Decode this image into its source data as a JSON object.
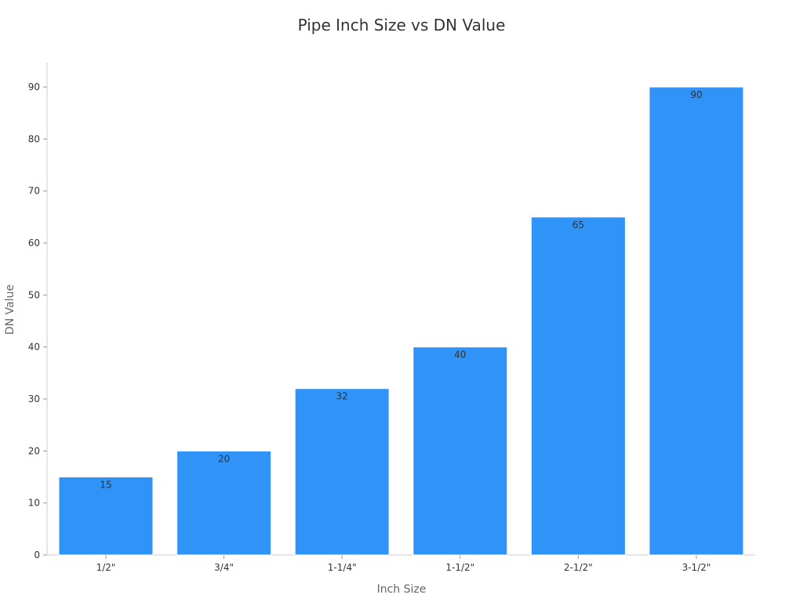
{
  "chart_data": {
    "type": "bar",
    "title": "Pipe Inch Size vs DN Value",
    "xlabel": "Inch Size",
    "ylabel": "DN Value",
    "categories": [
      "1/2\"",
      "3/4\"",
      "1-1/4\"",
      "1-1/2\"",
      "2-1/2\"",
      "3-1/2\""
    ],
    "values": [
      15,
      20,
      32,
      40,
      65,
      90
    ],
    "ylim": [
      0,
      95
    ],
    "yticks": [
      0,
      10,
      20,
      30,
      40,
      50,
      60,
      70,
      80,
      90
    ],
    "data_labels": true,
    "grid": false,
    "legend": "none",
    "colors": {
      "bar": "#2f93f7",
      "axis": "#cccccc",
      "tick_text": "#333333",
      "label_text": "#666666",
      "data_label": "#333333"
    }
  }
}
